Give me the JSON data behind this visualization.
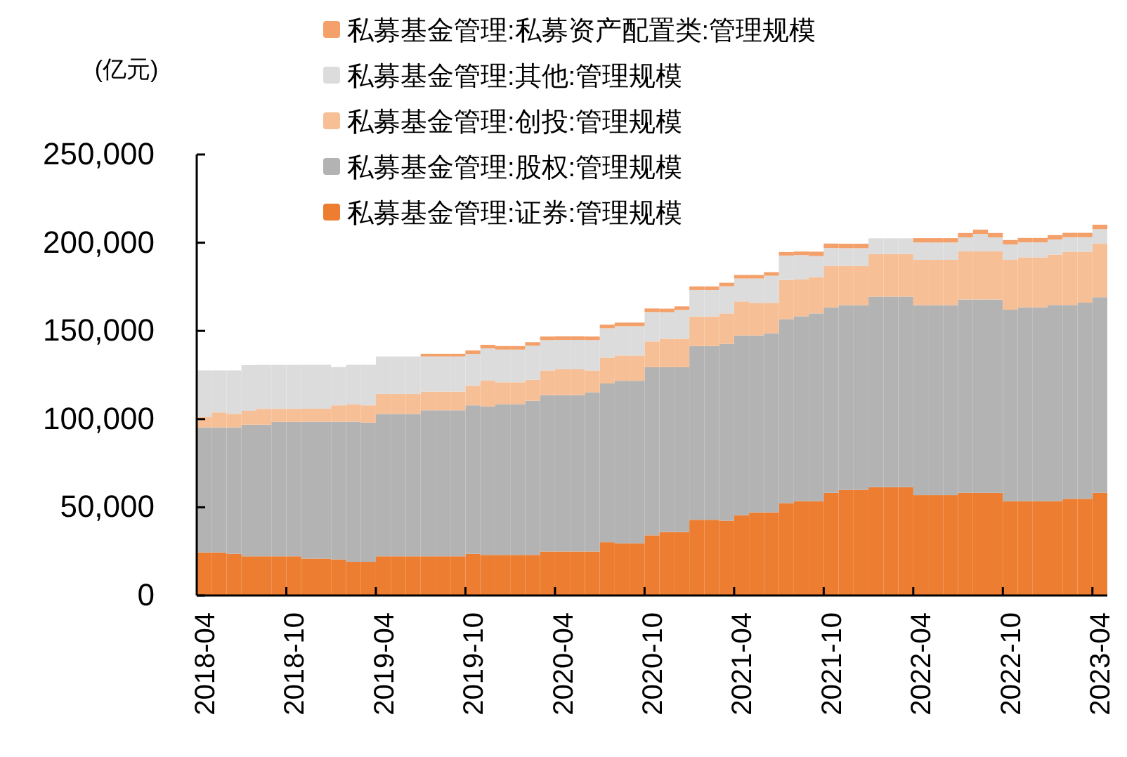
{
  "chart_data": {
    "type": "bar",
    "stacked": true,
    "ylabel": "(亿元)",
    "legend": "top",
    "categories": [
      "2018-04",
      null,
      null,
      null,
      null,
      null,
      "2018-10",
      null,
      null,
      null,
      null,
      null,
      "2019-04",
      null,
      null,
      null,
      null,
      null,
      "2019-10",
      null,
      null,
      null,
      null,
      null,
      "2020-04",
      null,
      null,
      null,
      null,
      null,
      "2020-10",
      null,
      null,
      null,
      null,
      null,
      "2021-04",
      null,
      null,
      null,
      null,
      null,
      "2021-10",
      null,
      null,
      null,
      null,
      null,
      "2022-04",
      null,
      null,
      null,
      null,
      null,
      "2022-10",
      null,
      null,
      null,
      null,
      null,
      "2023-04"
    ],
    "ylim": [
      0,
      250000
    ],
    "yticks": [
      {
        "value": 0,
        "label": "0"
      },
      {
        "value": 50000,
        "label": "50,000"
      },
      {
        "value": 100000,
        "label": "100,000"
      },
      {
        "value": 150000,
        "label": "150,000"
      },
      {
        "value": 200000,
        "label": "200,000"
      },
      {
        "value": 250000,
        "label": "250,000"
      }
    ],
    "series": [
      {
        "name": "私募基金管理:证券:管理规模",
        "color": "#ed7d31",
        "values": [
          24400,
          24400,
          23600,
          22200,
          22200,
          22200,
          22200,
          20900,
          20900,
          20400,
          19100,
          19100,
          22200,
          22200,
          22200,
          22200,
          22200,
          22200,
          23600,
          23000,
          23000,
          23000,
          23000,
          24900,
          24900,
          24900,
          24900,
          30200,
          29600,
          29600,
          34100,
          36000,
          36000,
          42900,
          42900,
          42400,
          45500,
          47100,
          47100,
          52400,
          53500,
          53500,
          58200,
          59800,
          59800,
          61400,
          61400,
          61400,
          56900,
          56900,
          56900,
          58200,
          58200,
          58200,
          53500,
          53500,
          53500,
          53500,
          54800,
          54800,
          58200
        ]
      },
      {
        "name": "私募基金管理:股权:管理规模",
        "color": "#b3b3b3",
        "values": [
          70900,
          70900,
          71700,
          74600,
          74600,
          76200,
          76200,
          77600,
          77600,
          78100,
          79400,
          78900,
          80700,
          80700,
          80700,
          82800,
          82800,
          82800,
          84200,
          84200,
          85500,
          85500,
          87400,
          88700,
          88700,
          88700,
          90300,
          90000,
          92100,
          92100,
          95300,
          93400,
          93400,
          98500,
          98500,
          100300,
          101900,
          100300,
          101600,
          104300,
          104800,
          106400,
          105100,
          104800,
          104800,
          108000,
          108000,
          108000,
          107700,
          107700,
          107700,
          109600,
          109600,
          109600,
          108500,
          109900,
          109900,
          111200,
          109900,
          111200,
          110900
        ]
      },
      {
        "name": "私募基金管理:创投:管理规模",
        "color": "#f7bf96",
        "values": [
          5800,
          8500,
          7700,
          7900,
          9000,
          7400,
          7400,
          7400,
          7400,
          9300,
          9800,
          9800,
          11400,
          11400,
          11400,
          10600,
          10600,
          10600,
          11100,
          14600,
          12400,
          12400,
          11900,
          14000,
          14600,
          14600,
          12400,
          14600,
          14300,
          14300,
          14600,
          16100,
          16100,
          16700,
          16700,
          17200,
          19300,
          18500,
          17200,
          22200,
          20900,
          20600,
          23600,
          22200,
          22200,
          24100,
          24100,
          24100,
          25700,
          25700,
          25700,
          27300,
          27300,
          27300,
          28300,
          28300,
          28300,
          28600,
          30200,
          28900,
          30400
        ]
      },
      {
        "name": "私募基金管理:其他:管理规模",
        "color": "#dcdcdc",
        "values": [
          26500,
          23800,
          24600,
          25900,
          24900,
          24900,
          24900,
          24900,
          24900,
          21700,
          22500,
          23000,
          21200,
          21200,
          21200,
          19900,
          19900,
          19900,
          18000,
          18300,
          18500,
          18500,
          19300,
          17200,
          16700,
          16700,
          17200,
          16700,
          16700,
          16700,
          16700,
          15100,
          16400,
          15100,
          15100,
          15400,
          13000,
          13800,
          15400,
          13800,
          13800,
          11900,
          10100,
          10100,
          10100,
          9000,
          9000,
          9000,
          9800,
          9800,
          9800,
          7900,
          9800,
          7900,
          8700,
          8500,
          8500,
          8500,
          8200,
          8200,
          8200
        ]
      },
      {
        "name": "私募基金管理:私募资产配置类:管理规模",
        "color": "#f4a06a",
        "values": [
          0,
          0,
          0,
          0,
          0,
          0,
          0,
          0,
          0,
          0,
          0,
          0,
          0,
          0,
          0,
          1500,
          1500,
          1500,
          2000,
          2000,
          2000,
          2000,
          2000,
          2000,
          2000,
          2000,
          2000,
          2000,
          2000,
          2000,
          2000,
          2000,
          2000,
          2000,
          2000,
          2000,
          2000,
          2000,
          2000,
          2000,
          2000,
          2500,
          2500,
          2500,
          2500,
          0,
          0,
          0,
          2500,
          2500,
          2500,
          2500,
          2500,
          2500,
          2500,
          2500,
          2500,
          2500,
          2500,
          2500,
          2500
        ]
      }
    ]
  }
}
